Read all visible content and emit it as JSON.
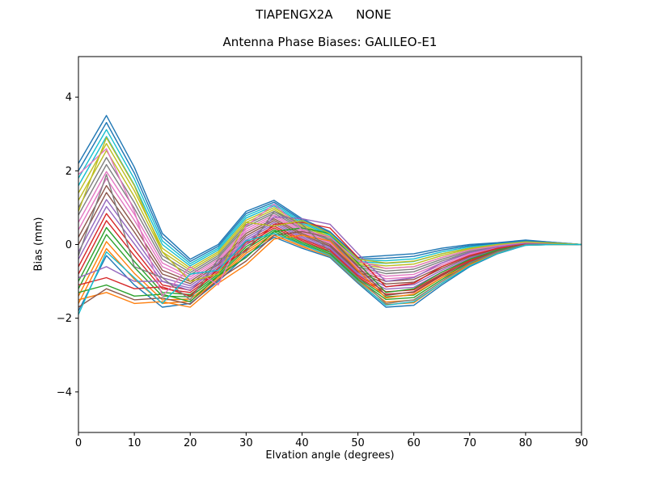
{
  "chart_data": {
    "type": "line",
    "suptitle": "TIAPENGX2A      NONE",
    "title": "Antenna Phase Biases: GALILEO-E1",
    "xlabel": "Elvation angle (degrees)",
    "ylabel": "Bias (mm)",
    "xlim": [
      0,
      90
    ],
    "ylim": [
      -5.1,
      5.1
    ],
    "xticks": [
      0,
      10,
      20,
      30,
      40,
      50,
      60,
      70,
      80,
      90
    ],
    "xtick_labels": [
      "0",
      "10",
      "20",
      "30",
      "40",
      "50",
      "60",
      "70",
      "80",
      "90"
    ],
    "yticks": [
      -4,
      -2,
      0,
      2,
      4
    ],
    "ytick_labels": [
      "−4",
      "−2",
      "0",
      "2",
      "4"
    ],
    "grid": false,
    "legend": null,
    "line_width": 1.4,
    "palette": [
      "#1f77b4",
      "#ff7f0e",
      "#2ca02c",
      "#d62728",
      "#9467bd",
      "#8c564b",
      "#e377c2",
      "#7f7f7f",
      "#bcbd22",
      "#17becf"
    ],
    "x": [
      0,
      5,
      10,
      15,
      20,
      25,
      30,
      35,
      40,
      45,
      50,
      55,
      60,
      65,
      70,
      75,
      80,
      85,
      90
    ],
    "series": [
      {
        "values": [
          -1.8,
          -0.3,
          -1.1,
          -1.7,
          -1.6,
          -1.0,
          -0.3,
          0.2,
          -0.1,
          -0.35,
          -1.05,
          -1.7,
          -1.65,
          -1.1,
          -0.6,
          -0.25,
          -0.02,
          0.0,
          0.0
        ]
      },
      {
        "values": [
          -1.4,
          0.08,
          -0.78,
          -1.5,
          -1.48,
          -0.9,
          -0.18,
          0.3,
          -0.02,
          -0.28,
          -0.98,
          -1.56,
          -1.51,
          -1.0,
          -0.54,
          -0.22,
          -0.01,
          0.01,
          0.0
        ]
      },
      {
        "values": [
          -1.0,
          0.46,
          -0.46,
          -1.3,
          -1.36,
          -0.8,
          -0.06,
          0.4,
          0.06,
          -0.21,
          -0.91,
          -1.42,
          -1.37,
          -0.9,
          -0.48,
          -0.19,
          0.01,
          0.01,
          0.0
        ]
      },
      {
        "values": [
          -0.6,
          0.84,
          -0.14,
          -1.1,
          -1.24,
          -0.7,
          0.06,
          0.5,
          0.14,
          -0.14,
          -0.84,
          -1.28,
          -1.23,
          -0.8,
          -0.42,
          -0.16,
          0.02,
          0.02,
          0.0
        ]
      },
      {
        "values": [
          -0.2,
          1.22,
          0.18,
          -0.9,
          -1.12,
          -0.6,
          0.18,
          0.6,
          0.22,
          -0.07,
          -0.77,
          -1.14,
          -1.09,
          -0.7,
          -0.36,
          -0.13,
          0.04,
          0.02,
          0.0
        ]
      },
      {
        "values": [
          0.2,
          1.6,
          0.5,
          -0.7,
          -1.0,
          -0.5,
          0.3,
          0.7,
          0.3,
          0.0,
          -0.7,
          -1.0,
          -0.95,
          -0.6,
          -0.3,
          -0.1,
          0.05,
          0.03,
          0.0
        ]
      },
      {
        "values": [
          0.6,
          1.98,
          0.82,
          -0.5,
          -0.88,
          -0.4,
          0.42,
          0.8,
          0.38,
          0.07,
          -0.63,
          -0.86,
          -0.81,
          -0.5,
          -0.24,
          -0.07,
          0.06,
          0.04,
          0.0
        ]
      },
      {
        "values": [
          1.0,
          2.36,
          1.14,
          -0.3,
          -0.76,
          -0.3,
          0.54,
          0.9,
          0.46,
          0.14,
          -0.56,
          -0.72,
          -0.67,
          -0.4,
          -0.18,
          -0.04,
          0.08,
          0.04,
          0.0
        ]
      },
      {
        "values": [
          1.4,
          2.74,
          1.46,
          -0.1,
          -0.64,
          -0.2,
          0.66,
          1.0,
          0.54,
          0.21,
          -0.49,
          -0.58,
          -0.53,
          -0.3,
          -0.12,
          -0.01,
          0.09,
          0.05,
          0.0
        ]
      },
      {
        "values": [
          1.8,
          3.12,
          1.78,
          0.1,
          -0.52,
          -0.1,
          0.78,
          1.1,
          0.62,
          0.28,
          -0.42,
          -0.44,
          -0.39,
          -0.2,
          -0.06,
          0.02,
          0.11,
          0.05,
          0.0
        ]
      },
      {
        "values": [
          2.2,
          3.5,
          2.1,
          0.3,
          -0.4,
          0.0,
          0.9,
          1.2,
          0.7,
          0.35,
          -0.35,
          -0.3,
          -0.25,
          -0.1,
          0.0,
          0.05,
          0.12,
          0.06,
          0.0
        ]
      },
      {
        "values": [
          -1.6,
          -0.11,
          -0.94,
          -1.6,
          -1.54,
          -0.95,
          -0.24,
          0.25,
          -0.06,
          -0.32,
          -1.02,
          -1.63,
          -1.58,
          -1.05,
          -0.57,
          -0.24,
          -0.01,
          0.0,
          0.0
        ]
      },
      {
        "values": [
          -1.2,
          0.27,
          -0.62,
          -1.4,
          -1.42,
          -0.85,
          -0.12,
          0.35,
          0.02,
          -0.25,
          -0.95,
          -1.49,
          -1.44,
          -0.95,
          -0.51,
          -0.21,
          0.0,
          0.01,
          0.0
        ]
      },
      {
        "values": [
          -0.8,
          0.65,
          -0.3,
          -1.2,
          -1.3,
          -0.75,
          0.0,
          0.45,
          0.1,
          -0.18,
          -0.88,
          -1.35,
          -1.3,
          -0.85,
          -0.45,
          -0.18,
          0.02,
          0.02,
          0.0
        ]
      },
      {
        "values": [
          -0.4,
          1.03,
          0.02,
          -1.0,
          -1.18,
          -0.65,
          0.12,
          0.55,
          0.18,
          -0.11,
          -0.81,
          -1.21,
          -1.16,
          -0.75,
          -0.39,
          -0.15,
          0.03,
          0.02,
          0.0
        ]
      },
      {
        "values": [
          0.0,
          1.41,
          0.34,
          -0.8,
          -1.06,
          -0.55,
          0.24,
          0.65,
          0.26,
          -0.04,
          -0.74,
          -1.07,
          -1.02,
          -0.65,
          -0.33,
          -0.12,
          0.04,
          0.03,
          0.0
        ]
      },
      {
        "values": [
          0.4,
          1.79,
          0.66,
          -0.6,
          -0.94,
          -0.45,
          0.36,
          0.75,
          0.34,
          0.04,
          -0.67,
          -0.93,
          -0.88,
          -0.55,
          -0.27,
          -0.09,
          0.06,
          0.03,
          0.0
        ]
      },
      {
        "values": [
          0.8,
          2.17,
          0.98,
          -0.4,
          -0.82,
          -0.35,
          0.48,
          0.85,
          0.42,
          0.11,
          -0.6,
          -0.79,
          -0.74,
          -0.45,
          -0.21,
          -0.06,
          0.07,
          0.04,
          0.0
        ]
      },
      {
        "values": [
          1.2,
          2.55,
          1.3,
          -0.2,
          -0.7,
          -0.25,
          0.6,
          0.95,
          0.5,
          0.18,
          -0.53,
          -0.65,
          -0.6,
          -0.35,
          -0.15,
          -0.03,
          0.09,
          0.05,
          0.0
        ]
      },
      {
        "values": [
          1.6,
          2.93,
          1.62,
          0.0,
          -0.58,
          -0.15,
          0.72,
          1.05,
          0.58,
          0.25,
          -0.46,
          -0.51,
          -0.46,
          -0.25,
          -0.09,
          0.01,
          0.1,
          0.05,
          0.0
        ]
      },
      {
        "values": [
          2.0,
          3.31,
          1.94,
          0.2,
          -0.46,
          -0.05,
          0.84,
          1.15,
          0.66,
          0.32,
          -0.39,
          -0.37,
          -0.32,
          -0.15,
          -0.03,
          0.04,
          0.11,
          0.06,
          0.0
        ]
      },
      {
        "values": [
          -1.5,
          -1.3,
          -1.6,
          -1.55,
          -1.7,
          -1.05,
          -0.55,
          0.15,
          0.25,
          0.1,
          -0.7,
          -1.45,
          -1.35,
          -0.9,
          -0.55,
          -0.22,
          -0.02,
          0.0,
          0.0
        ]
      },
      {
        "values": [
          -1.3,
          -1.1,
          -1.4,
          -1.35,
          -1.55,
          -0.85,
          -0.35,
          0.35,
          0.45,
          0.3,
          -0.5,
          -1.3,
          -1.2,
          -0.75,
          -0.4,
          -0.15,
          0.0,
          0.02,
          0.0
        ]
      },
      {
        "values": [
          -1.1,
          -0.9,
          -1.2,
          -1.15,
          -1.4,
          -0.65,
          -0.15,
          0.55,
          0.6,
          0.45,
          -0.35,
          -1.15,
          -1.05,
          -0.6,
          -0.3,
          -0.1,
          0.02,
          0.03,
          0.0
        ]
      },
      {
        "values": [
          -0.9,
          -0.6,
          -1.0,
          -1.0,
          -1.25,
          -0.5,
          0.0,
          0.75,
          0.7,
          0.55,
          -0.25,
          -1.0,
          -0.9,
          -0.5,
          -0.22,
          -0.06,
          0.04,
          0.03,
          0.0
        ]
      },
      {
        "values": [
          -1.7,
          -1.2,
          -1.5,
          -1.45,
          -1.62,
          -0.95,
          -0.45,
          0.25,
          0.35,
          0.2,
          -0.6,
          -1.38,
          -1.28,
          -0.82,
          -0.48,
          -0.18,
          -0.01,
          0.01,
          0.0
        ]
      },
      {
        "values": [
          1.9,
          2.6,
          0.9,
          -1.4,
          -0.6,
          -1.1,
          0.5,
          1.1,
          0.4,
          0.2,
          -0.45,
          -0.65,
          -0.6,
          -0.35,
          -0.15,
          -0.03,
          0.06,
          0.03,
          0.0
        ]
      },
      {
        "values": [
          -0.3,
          1.9,
          -0.6,
          -0.9,
          -1.5,
          -0.4,
          -0.2,
          0.9,
          0.55,
          -0.2,
          -0.9,
          -1.6,
          -1.5,
          -1.0,
          -0.5,
          -0.2,
          0.0,
          0.01,
          0.0
        ]
      },
      {
        "values": [
          0.9,
          2.9,
          1.6,
          -0.2,
          -1.0,
          -0.8,
          0.6,
          0.5,
          0.65,
          0.3,
          -0.4,
          -0.5,
          -0.45,
          -0.25,
          -0.1,
          0.0,
          0.07,
          0.04,
          0.0
        ]
      },
      {
        "values": [
          -1.9,
          -0.2,
          -0.9,
          -1.6,
          -0.8,
          -0.7,
          0.1,
          0.3,
          0.0,
          -0.3,
          -1.0,
          -1.65,
          -1.55,
          -1.05,
          -0.58,
          -0.24,
          -0.02,
          0.0,
          0.0
        ]
      }
    ]
  }
}
